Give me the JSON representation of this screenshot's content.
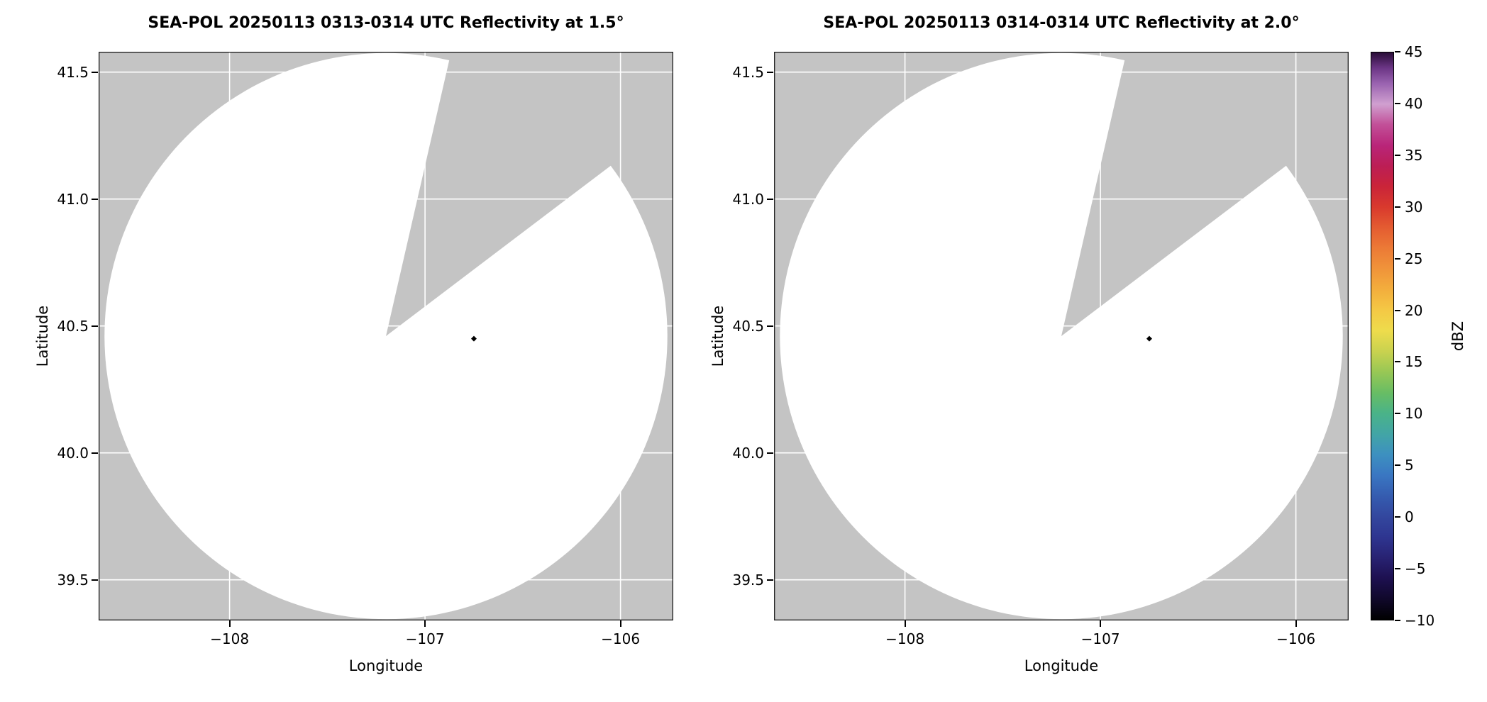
{
  "figure": {
    "background": "#ffffff",
    "panel_bg": "#c4c4c4",
    "grid_color": "#ffffff",
    "coverage_color": "#ffffff"
  },
  "chart_data": [
    {
      "type": "heatmap",
      "title": "SEA-POL 20250113 0313-0314 UTC Reflectivity at 1.5°",
      "xlabel": "Longitude",
      "ylabel": "Latitude",
      "xlim": [
        -108.67,
        -105.73
      ],
      "ylim": [
        39.34,
        41.58
      ],
      "xticks": [
        -108,
        -107,
        -106
      ],
      "xtick_labels": [
        "−108",
        "−107",
        "−106"
      ],
      "yticks": [
        39.5,
        40.0,
        40.5,
        41.0,
        41.5
      ],
      "ytick_labels": [
        "39.5",
        "40.0",
        "40.5",
        "41.0",
        "41.5"
      ],
      "grid": true,
      "radar": {
        "center_lon": -107.2,
        "center_lat": 40.46,
        "radius_deg_lon": 1.44,
        "radius_deg_lat": 1.115,
        "no_data_sector_azimuth_deg": [
          13,
          53
        ]
      },
      "points": [
        {
          "lon": -106.75,
          "lat": 40.45,
          "color": "#000000"
        }
      ]
    },
    {
      "type": "heatmap",
      "title": "SEA-POL 20250113 0314-0314 UTC Reflectivity at 2.0°",
      "xlabel": "Longitude",
      "ylabel": "Latitude",
      "xlim": [
        -108.67,
        -105.73
      ],
      "ylim": [
        39.34,
        41.58
      ],
      "xticks": [
        -108,
        -107,
        -106
      ],
      "xtick_labels": [
        "−108",
        "−107",
        "−106"
      ],
      "yticks": [
        39.5,
        40.0,
        40.5,
        41.0,
        41.5
      ],
      "ytick_labels": [
        "39.5",
        "40.0",
        "40.5",
        "41.0",
        "41.5"
      ],
      "grid": true,
      "radar": {
        "center_lon": -107.2,
        "center_lat": 40.46,
        "radius_deg_lon": 1.44,
        "radius_deg_lat": 1.115,
        "no_data_sector_azimuth_deg": [
          13,
          53
        ]
      },
      "points": [
        {
          "lon": -106.75,
          "lat": 40.45,
          "color": "#000000"
        }
      ]
    }
  ],
  "colorbar": {
    "label": "dBZ",
    "vmin": -10,
    "vmax": 45,
    "ticks": [
      -10,
      -5,
      0,
      5,
      10,
      15,
      20,
      25,
      30,
      35,
      40,
      45
    ],
    "tick_labels": [
      "−10",
      "−5",
      "0",
      "5",
      "10",
      "15",
      "20",
      "25",
      "30",
      "35",
      "40",
      "45"
    ],
    "gradient_stops": [
      {
        "value": -10,
        "color": "#000000"
      },
      {
        "value": -8,
        "color": "#10082a"
      },
      {
        "value": -6,
        "color": "#1d1050"
      },
      {
        "value": -4,
        "color": "#282272"
      },
      {
        "value": -2,
        "color": "#2e3590"
      },
      {
        "value": 0,
        "color": "#33479e"
      },
      {
        "value": 2,
        "color": "#355cb0"
      },
      {
        "value": 4,
        "color": "#3a77c2"
      },
      {
        "value": 6,
        "color": "#3d90c0"
      },
      {
        "value": 8,
        "color": "#42a5a6"
      },
      {
        "value": 10,
        "color": "#4ab388"
      },
      {
        "value": 12,
        "color": "#68bd64"
      },
      {
        "value": 14,
        "color": "#97c755"
      },
      {
        "value": 16,
        "color": "#c9d24f"
      },
      {
        "value": 18,
        "color": "#eedc4c"
      },
      {
        "value": 20,
        "color": "#f4c945"
      },
      {
        "value": 22,
        "color": "#f3ae3d"
      },
      {
        "value": 24,
        "color": "#f0943a"
      },
      {
        "value": 26,
        "color": "#ec7a36"
      },
      {
        "value": 28,
        "color": "#e45c31"
      },
      {
        "value": 30,
        "color": "#d93a2d"
      },
      {
        "value": 32,
        "color": "#ca2439"
      },
      {
        "value": 34,
        "color": "#bc1e55"
      },
      {
        "value": 36,
        "color": "#b92579"
      },
      {
        "value": 38,
        "color": "#c25098"
      },
      {
        "value": 40,
        "color": "#d0a0d0"
      },
      {
        "value": 42,
        "color": "#9a63b0"
      },
      {
        "value": 43.5,
        "color": "#6b3585"
      },
      {
        "value": 45,
        "color": "#2a0d38"
      }
    ]
  }
}
